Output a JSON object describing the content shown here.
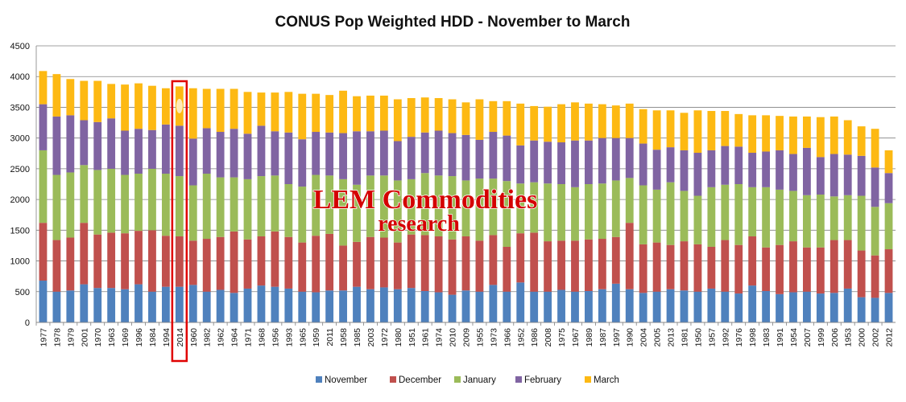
{
  "chart_data": {
    "type": "bar",
    "stacked": true,
    "title": "CONUS Pop Weighted HDD - November to March",
    "xlabel": "",
    "ylabel": "",
    "ylim": [
      0,
      4500
    ],
    "yticks": [
      0,
      500,
      1000,
      1500,
      2000,
      2500,
      3000,
      3500,
      4000,
      4500
    ],
    "grid": true,
    "legend_position": "bottom",
    "highlighted_category": "2014",
    "watermark": [
      "LEM Commodities",
      "research"
    ],
    "categories": [
      "1977",
      "1978",
      "1979",
      "2001",
      "1970",
      "1963",
      "1969",
      "1996",
      "1984",
      "1994",
      "2014",
      "1960",
      "1982",
      "1962",
      "1964",
      "1971",
      "1968",
      "1956",
      "1993",
      "1965",
      "1959",
      "2011",
      "1958",
      "1985",
      "2003",
      "1972",
      "1980",
      "1951",
      "1961",
      "1974",
      "2010",
      "2009",
      "1955",
      "1973",
      "1966",
      "1952",
      "1986",
      "2008",
      "1975",
      "1967",
      "1989",
      "1987",
      "1997",
      "1990",
      "2004",
      "2005",
      "2013",
      "1981",
      "1950",
      "1957",
      "1992",
      "1976",
      "1998",
      "1983",
      "1991",
      "1954",
      "2007",
      "1999",
      "2006",
      "1953",
      "2000",
      "2002",
      "2012"
    ],
    "series": [
      {
        "name": "November",
        "color": "#4f81bd",
        "values": [
          680,
          500,
          520,
          620,
          560,
          560,
          540,
          620,
          500,
          580,
          580,
          610,
          500,
          530,
          480,
          550,
          600,
          580,
          550,
          500,
          490,
          520,
          520,
          580,
          540,
          570,
          540,
          560,
          510,
          490,
          450,
          520,
          500,
          610,
          500,
          650,
          500,
          500,
          530,
          500,
          510,
          540,
          630,
          540,
          480,
          500,
          540,
          520,
          500,
          550,
          500,
          470,
          600,
          510,
          460,
          490,
          500,
          470,
          480,
          550,
          410,
          400,
          480
        ]
      },
      {
        "name": "December",
        "color": "#c0504d",
        "values": [
          940,
          840,
          860,
          1000,
          870,
          900,
          910,
          870,
          1000,
          830,
          820,
          720,
          860,
          860,
          1000,
          800,
          800,
          900,
          840,
          800,
          920,
          920,
          730,
          730,
          850,
          810,
          760,
          870,
          910,
          910,
          900,
          880,
          830,
          810,
          730,
          800,
          960,
          820,
          800,
          830,
          840,
          820,
          760,
          1080,
          790,
          800,
          720,
          800,
          770,
          680,
          840,
          790,
          800,
          710,
          800,
          830,
          720,
          750,
          860,
          790,
          760,
          690,
          710
        ]
      },
      {
        "name": "January",
        "color": "#9bbb59",
        "values": [
          1180,
          1060,
          1060,
          940,
          1050,
          1040,
          950,
          930,
          1000,
          1010,
          980,
          900,
          1060,
          970,
          880,
          980,
          980,
          910,
          860,
          910,
          990,
          950,
          1080,
          930,
          1000,
          1010,
          1010,
          900,
          1010,
          990,
          1030,
          910,
          1010,
          920,
          1070,
          810,
          820,
          940,
          920,
          870,
          900,
          900,
          920,
          730,
          960,
          860,
          1020,
          820,
          790,
          970,
          900,
          990,
          800,
          980,
          900,
          820,
          850,
          860,
          710,
          730,
          890,
          790,
          750
        ]
      },
      {
        "name": "February",
        "color": "#8064a2",
        "values": [
          750,
          950,
          930,
          730,
          780,
          820,
          720,
          730,
          630,
          800,
          820,
          760,
          740,
          740,
          790,
          740,
          820,
          720,
          840,
          770,
          700,
          700,
          750,
          870,
          720,
          730,
          640,
          690,
          660,
          730,
          700,
          740,
          630,
          760,
          740,
          620,
          680,
          680,
          680,
          760,
          710,
          740,
          690,
          650,
          680,
          650,
          570,
          660,
          700,
          600,
          630,
          610,
          560,
          580,
          640,
          600,
          770,
          610,
          690,
          660,
          650,
          640,
          490
        ]
      },
      {
        "name": "March",
        "color": "#fdb913",
        "values": [
          540,
          690,
          590,
          640,
          670,
          560,
          750,
          740,
          720,
          590,
          640,
          820,
          640,
          700,
          650,
          680,
          540,
          630,
          660,
          740,
          620,
          610,
          690,
          570,
          580,
          570,
          680,
          630,
          570,
          530,
          550,
          530,
          660,
          500,
          560,
          680,
          560,
          570,
          620,
          620,
          600,
          550,
          530,
          560,
          560,
          640,
          600,
          610,
          690,
          640,
          570,
          530,
          610,
          590,
          560,
          610,
          510,
          650,
          610,
          560,
          480,
          630,
          370
        ]
      }
    ]
  }
}
